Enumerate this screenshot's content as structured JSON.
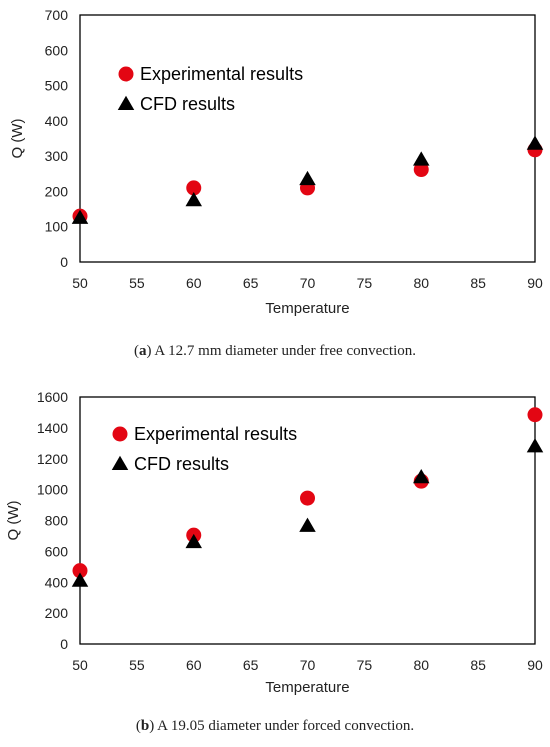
{
  "chart_data": [
    {
      "type": "scatter",
      "xlabel": "Temperature",
      "ylabel": "Q (W)",
      "xlim": [
        50,
        90
      ],
      "ylim": [
        0,
        700
      ],
      "x_ticks": [
        50,
        55,
        60,
        65,
        70,
        75,
        80,
        85,
        90
      ],
      "y_ticks": [
        0,
        100,
        200,
        300,
        400,
        500,
        600,
        700
      ],
      "legend_position": "upper-left inside",
      "grid": false,
      "series": [
        {
          "name": "Experimental results",
          "marker": "circle",
          "color": "#e30613",
          "x": [
            50,
            60,
            70,
            80,
            90
          ],
          "y": [
            130,
            210,
            210,
            262,
            318
          ]
        },
        {
          "name": "CFD results",
          "marker": "triangle",
          "color": "#000000",
          "x": [
            50,
            60,
            70,
            80,
            90
          ],
          "y": [
            125,
            175,
            235,
            290,
            335
          ]
        }
      ]
    },
    {
      "type": "scatter",
      "xlabel": "Temperature",
      "ylabel": "Q (W)",
      "xlim": [
        50,
        90
      ],
      "ylim": [
        0,
        1600
      ],
      "x_ticks": [
        50,
        55,
        60,
        65,
        70,
        75,
        80,
        85,
        90
      ],
      "y_ticks": [
        0,
        200,
        400,
        600,
        800,
        1000,
        1200,
        1400,
        1600
      ],
      "legend_position": "upper-left inside",
      "grid": false,
      "series": [
        {
          "name": "Experimental results",
          "marker": "circle",
          "color": "#e30613",
          "x": [
            50,
            60,
            70,
            80,
            90
          ],
          "y": [
            475,
            705,
            945,
            1055,
            1485
          ]
        },
        {
          "name": "CFD results",
          "marker": "triangle",
          "color": "#000000",
          "x": [
            50,
            60,
            70,
            80,
            90
          ],
          "y": [
            410,
            660,
            765,
            1080,
            1280
          ]
        }
      ]
    }
  ],
  "captions": [
    {
      "label": "a",
      "text": "A 12.7 mm diameter under free convection."
    },
    {
      "label": "b",
      "text": "A 19.05 diameter under forced convection."
    }
  ]
}
